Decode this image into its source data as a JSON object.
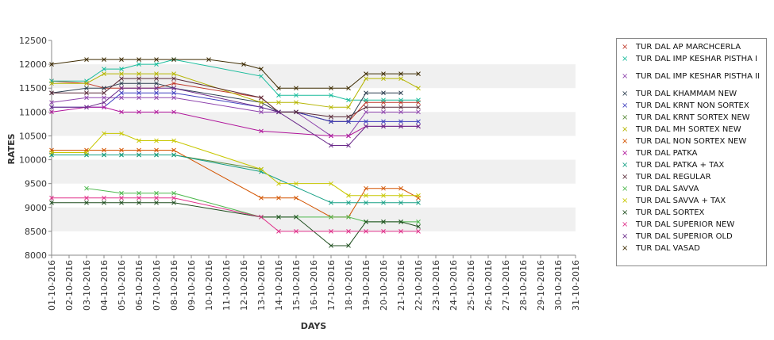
{
  "chart_data": {
    "type": "line",
    "xlabel": "DAYS",
    "ylabel": "RATES",
    "ylim": [
      8000,
      12500
    ],
    "yticks": [
      8000,
      8500,
      9000,
      9500,
      10000,
      10500,
      11000,
      11500,
      12000,
      12500
    ],
    "grid": "alternating horizontal bands",
    "legend_position": "right",
    "categories": [
      "01-10-2016",
      "02-10-2016",
      "03-10-2016",
      "04-10-2016",
      "05-10-2016",
      "06-10-2016",
      "07-10-2016",
      "08-10-2016",
      "09-10-2016",
      "10-10-2016",
      "11-10-2016",
      "12-10-2016",
      "13-10-2016",
      "14-10-2016",
      "15-10-2016",
      "16-10-2016",
      "17-10-2016",
      "18-10-2016",
      "19-10-2016",
      "20-10-2016",
      "21-10-2016",
      "22-10-2016",
      "23-10-2016",
      "24-10-2016",
      "25-10-2016",
      "26-10-2016",
      "27-10-2016",
      "28-10-2016",
      "29-10-2016",
      "30-10-2016",
      "31-10-2016"
    ],
    "series": [
      {
        "name": "TUR DAL AP MARCHCERLA",
        "color": "#c0392b",
        "values": [
          11650,
          null,
          11600,
          11500,
          11500,
          11500,
          11500,
          11600,
          null,
          null,
          null,
          null,
          11300,
          11000,
          11000,
          null,
          10800,
          10800,
          11200,
          11200,
          11200,
          11200,
          null,
          null,
          null,
          null,
          null,
          null,
          null,
          null,
          null
        ]
      },
      {
        "name": "TUR DAL IMP KESHAR PISTHA I",
        "color": "#1abc9c",
        "values": [
          11650,
          null,
          11650,
          11900,
          11900,
          12000,
          12000,
          12100,
          null,
          null,
          null,
          null,
          11750,
          11350,
          11350,
          null,
          11350,
          11250,
          11250,
          11250,
          11250,
          11250,
          null,
          null,
          null,
          null,
          null,
          null,
          null,
          null,
          null
        ]
      },
      {
        "name": "TUR DAL IMP KESHAR PISTHA II",
        "color": "#8e44ad",
        "values": [
          11200,
          null,
          11300,
          11300,
          11300,
          11300,
          11300,
          11300,
          null,
          null,
          null,
          null,
          11000,
          11000,
          11000,
          null,
          10500,
          10500,
          11000,
          11000,
          11000,
          11000,
          null,
          null,
          null,
          null,
          null,
          null,
          null,
          null,
          null
        ]
      },
      {
        "name": "TUR DAL KHAMMAM NEW",
        "color": "#2c3e50",
        "values": [
          11400,
          null,
          11500,
          11500,
          11600,
          11600,
          11600,
          11500,
          null,
          null,
          null,
          null,
          11200,
          11000,
          11000,
          null,
          10800,
          10800,
          11400,
          11400,
          11400,
          null,
          null,
          null,
          null,
          null,
          null,
          null,
          null,
          null,
          null
        ]
      },
      {
        "name": "TUR DAL KRNT NON SORTEX",
        "color": "#3f3fbf",
        "values": [
          11100,
          null,
          11100,
          11100,
          11400,
          11400,
          11400,
          11400,
          null,
          null,
          null,
          null,
          11100,
          11000,
          11000,
          null,
          10800,
          10800,
          10800,
          10800,
          10800,
          10800,
          null,
          null,
          null,
          null,
          null,
          null,
          null,
          null,
          null
        ]
      },
      {
        "name": "TUR DAL KRNT SORTEX NEW",
        "color": "#5a8a3a",
        "values": [
          10100,
          null,
          10100,
          10100,
          10100,
          10100,
          10100,
          10100,
          null,
          null,
          null,
          null,
          9800,
          null,
          null,
          null,
          null,
          null,
          null,
          null,
          null,
          null,
          null,
          null,
          null,
          null,
          null,
          null,
          null,
          null,
          null
        ]
      },
      {
        "name": "TUR DAL MH SORTEX NEW",
        "color": "#b5b500",
        "values": [
          11600,
          null,
          11600,
          11800,
          11800,
          11800,
          11800,
          11800,
          null,
          null,
          null,
          null,
          11200,
          11200,
          11200,
          null,
          11100,
          11100,
          11700,
          11700,
          11700,
          11500,
          null,
          null,
          null,
          null,
          null,
          null,
          null,
          null,
          null
        ]
      },
      {
        "name": "TUR DAL NON SORTEX NEW",
        "color": "#d35400",
        "values": [
          10200,
          null,
          10200,
          10200,
          10200,
          10200,
          10200,
          10200,
          null,
          null,
          null,
          null,
          9200,
          9200,
          9200,
          null,
          8800,
          8800,
          9400,
          9400,
          9400,
          9200,
          null,
          null,
          null,
          null,
          null,
          null,
          null,
          null,
          null
        ]
      },
      {
        "name": "TUR DAL PATKA",
        "color": "#b0159b",
        "values": [
          11000,
          null,
          11100,
          11100,
          11000,
          11000,
          11000,
          11000,
          null,
          null,
          null,
          null,
          10600,
          null,
          null,
          null,
          10500,
          10500,
          10700,
          10700,
          10700,
          10700,
          null,
          null,
          null,
          null,
          null,
          null,
          null,
          null,
          null
        ]
      },
      {
        "name": "TUR DAL PATKA + TAX",
        "color": "#16a085",
        "values": [
          10100,
          null,
          10100,
          10100,
          10100,
          10100,
          10100,
          10100,
          null,
          null,
          null,
          null,
          9750,
          null,
          null,
          null,
          9100,
          9100,
          9100,
          9100,
          9100,
          9100,
          null,
          null,
          null,
          null,
          null,
          null,
          null,
          null,
          null
        ]
      },
      {
        "name": "TUR DAL REGULAR",
        "color": "#5b2c3a",
        "values": [
          11400,
          null,
          11400,
          11400,
          11700,
          11700,
          11700,
          11700,
          null,
          null,
          null,
          null,
          11300,
          11000,
          11000,
          null,
          10900,
          10900,
          11100,
          11100,
          11100,
          11100,
          null,
          null,
          null,
          null,
          null,
          null,
          null,
          null,
          null
        ]
      },
      {
        "name": "TUR DAL SAVVA",
        "color": "#4cb84c",
        "values": [
          null,
          null,
          9400,
          null,
          9300,
          9300,
          9300,
          9300,
          null,
          null,
          null,
          null,
          8800,
          8800,
          8800,
          null,
          8800,
          8800,
          8700,
          8700,
          8700,
          8700,
          null,
          null,
          null,
          null,
          null,
          null,
          null,
          null,
          null
        ]
      },
      {
        "name": "TUR DAL SAVVA + TAX",
        "color": "#c7c700",
        "values": [
          10150,
          null,
          10150,
          10550,
          10550,
          10400,
          10400,
          10400,
          null,
          null,
          null,
          null,
          9800,
          9500,
          9500,
          null,
          9500,
          9250,
          9250,
          9250,
          9250,
          9250,
          null,
          null,
          null,
          null,
          null,
          null,
          null,
          null,
          null
        ]
      },
      {
        "name": "TUR DAL SORTEX",
        "color": "#1e4d1e",
        "values": [
          9100,
          null,
          9100,
          9100,
          9100,
          9100,
          9100,
          9100,
          null,
          null,
          null,
          null,
          8800,
          8800,
          8800,
          null,
          8200,
          8200,
          8700,
          8700,
          8700,
          8600,
          null,
          null,
          null,
          null,
          null,
          null,
          null,
          null,
          null
        ]
      },
      {
        "name": "TUR DAL SUPERIOR NEW",
        "color": "#e0308a",
        "values": [
          9200,
          null,
          9200,
          9200,
          9200,
          9200,
          9200,
          9200,
          null,
          null,
          null,
          null,
          8800,
          8500,
          8500,
          null,
          8500,
          8500,
          8500,
          8500,
          8500,
          8500,
          null,
          null,
          null,
          null,
          null,
          null,
          null,
          null,
          null
        ]
      },
      {
        "name": "TUR DAL SUPERIOR OLD",
        "color": "#6a2a8a",
        "values": [
          11100,
          null,
          11100,
          11200,
          11500,
          11500,
          11500,
          11500,
          null,
          null,
          null,
          null,
          11100,
          11000,
          null,
          null,
          10300,
          10300,
          10700,
          10700,
          10700,
          10700,
          null,
          null,
          null,
          null,
          null,
          null,
          null,
          null,
          null
        ]
      },
      {
        "name": "TUR DAL VASAD",
        "color": "#3d2b00",
        "values": [
          12000,
          null,
          12100,
          12100,
          12100,
          12100,
          12100,
          12100,
          null,
          12100,
          null,
          12000,
          11900,
          11500,
          11500,
          null,
          11500,
          11500,
          11800,
          11800,
          11800,
          11800,
          null,
          null,
          null,
          null,
          null,
          null,
          null,
          null,
          null
        ]
      }
    ]
  }
}
